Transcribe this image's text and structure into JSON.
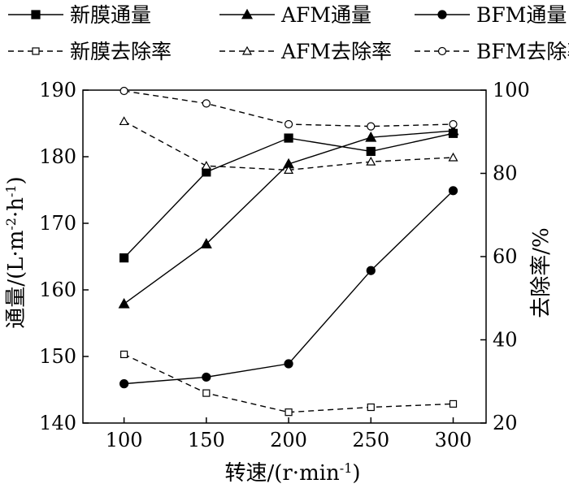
{
  "chart_data": {
    "type": "line",
    "x": [
      100,
      150,
      200,
      250,
      300
    ],
    "xlabel": "转速/(r·min-1)",
    "xlabel_parts": [
      "转速/(r·min",
      "-1",
      ")"
    ],
    "ylabel_left": "通量/(L·m-2·h-1)",
    "ylabel_left_parts": [
      "通量/(L·m",
      "-2",
      "·h",
      "-1",
      ")"
    ],
    "ylabel_right": "去除率/%",
    "ylim_left": [
      140,
      190
    ],
    "ylim_right": [
      20,
      100
    ],
    "xticks": [
      100,
      150,
      200,
      250,
      300
    ],
    "yticks_left": [
      140,
      150,
      160,
      170,
      180,
      190
    ],
    "yticks_right": [
      20,
      40,
      60,
      80,
      100
    ],
    "grid": false,
    "legend_position": "top",
    "series": [
      {
        "name": "新膜通量",
        "axis": "left",
        "style": "solid",
        "marker": "square-filled",
        "values": [
          164.8,
          177.7,
          182.8,
          180.8,
          183.5
        ]
      },
      {
        "name": "AFM通量",
        "axis": "left",
        "style": "solid",
        "marker": "triangle-filled",
        "values": [
          157.9,
          166.9,
          178.9,
          182.9,
          183.9
        ]
      },
      {
        "name": "BFM通量",
        "axis": "left",
        "style": "solid",
        "marker": "circle-filled",
        "values": [
          145.9,
          146.9,
          148.9,
          162.9,
          174.9
        ]
      },
      {
        "name": "新膜去除率",
        "axis": "right",
        "style": "dashed",
        "marker": "square-open",
        "values": [
          36.5,
          27.2,
          22.6,
          23.8,
          24.6
        ]
      },
      {
        "name": "AFM去除率",
        "axis": "right",
        "style": "dashed",
        "marker": "triangle-open",
        "values": [
          92.5,
          81.8,
          80.8,
          82.8,
          83.8
        ]
      },
      {
        "name": "BFM去除率",
        "axis": "right",
        "style": "dashed",
        "marker": "circle-open",
        "values": [
          99.8,
          96.8,
          91.8,
          91.3,
          91.8
        ]
      }
    ]
  }
}
